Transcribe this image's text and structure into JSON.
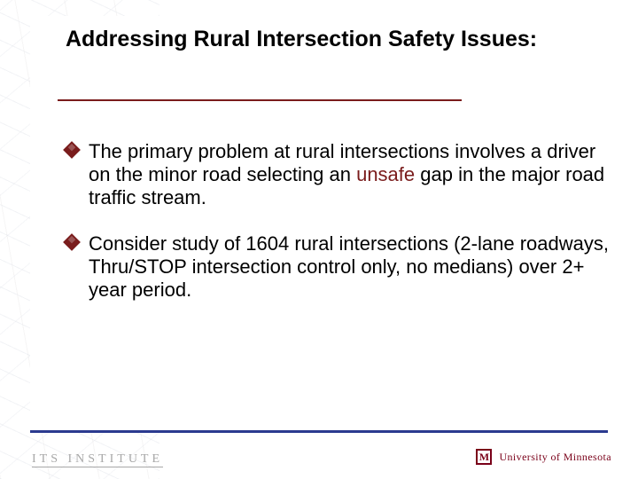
{
  "slide": {
    "title": "Addressing Rural Intersection Safety Issues:",
    "bullets": [
      {
        "pre": "The primary problem at rural intersections involves a driver on the minor road selecting an  ",
        "em": "unsafe",
        "post": " gap in the major road traffic stream."
      },
      {
        "pre": "Consider study of 1604 rural intersections (2-lane roadways, Thru/STOP intersection control only, no medians) over 2+ year period.",
        "em": "",
        "post": ""
      }
    ]
  },
  "footer": {
    "left_text": "ITS INSTITUTE",
    "umn_glyph": "M",
    "umn_text": "University of Minnesota"
  },
  "style": {
    "title_fontsize": 25,
    "body_fontsize": 22,
    "accent_maroon": "#7a1c1c",
    "umn_maroon": "#7a0019",
    "rule_blue": "#2b3a8f",
    "footer_gray": "#a7a7a7",
    "background": "#ffffff",
    "title_rule_width": 456,
    "slide_width": 720,
    "slide_height": 540
  }
}
